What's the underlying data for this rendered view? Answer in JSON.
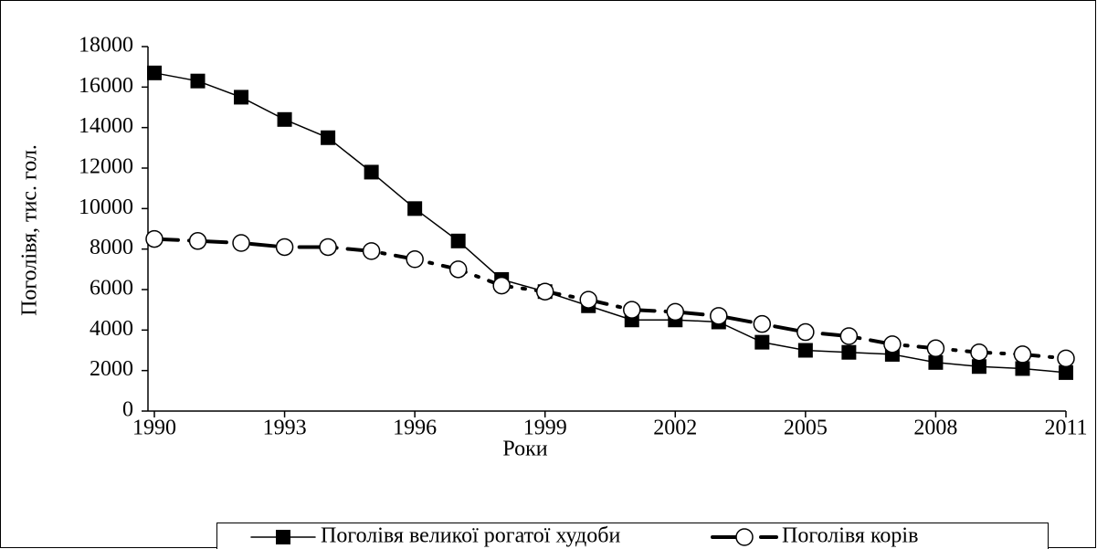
{
  "chart_data": {
    "type": "line",
    "x_label": "Роки",
    "y_label": "Поголівя, тис.  гол.",
    "x": [
      1990,
      1991,
      1992,
      1993,
      1994,
      1995,
      1996,
      1997,
      1998,
      1999,
      2000,
      2001,
      2002,
      2003,
      2004,
      2005,
      2006,
      2007,
      2008,
      2009,
      2010,
      2011
    ],
    "xlim": [
      1990,
      2011
    ],
    "xticks": [
      1990,
      1993,
      1996,
      1999,
      2002,
      2005,
      2008,
      2011
    ],
    "ylim": [
      0,
      18000
    ],
    "yticks": [
      0,
      2000,
      4000,
      6000,
      8000,
      10000,
      12000,
      14000,
      16000,
      18000
    ],
    "legend": "bottom",
    "series": [
      {
        "name": "Поголівя великої рогатої худоби",
        "color": "#000000",
        "marker": "square",
        "values": [
          16700,
          16300,
          15500,
          14400,
          13500,
          11800,
          10000,
          8400,
          6500,
          5900,
          5200,
          4500,
          4500,
          4400,
          3400,
          3000,
          2900,
          2800,
          2400,
          2200,
          2100,
          1900
        ]
      },
      {
        "name": "Поголівя корів",
        "color": "#000000",
        "marker": "circle",
        "values": [
          8500,
          8400,
          8300,
          8100,
          8100,
          7900,
          7500,
          7000,
          6200,
          5900,
          5500,
          5000,
          4900,
          4700,
          4300,
          3900,
          3700,
          3300,
          3100,
          2900,
          2800,
          2600
        ]
      }
    ]
  }
}
